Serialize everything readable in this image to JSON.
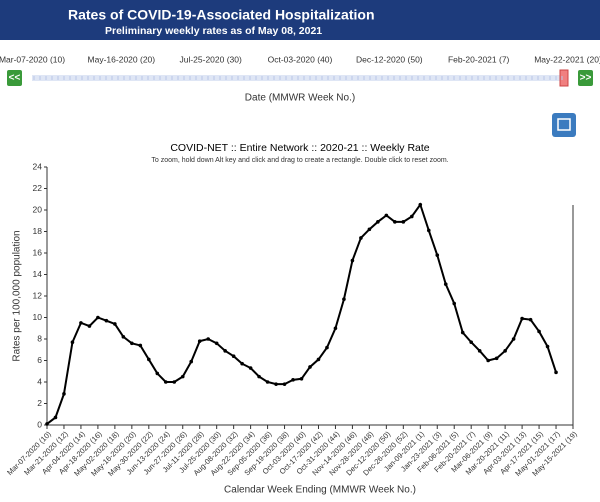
{
  "header": {
    "title": "Rates of COVID-19-Associated Hospitalization",
    "subtitle": "Preliminary weekly rates as of May 08, 2021"
  },
  "slider": {
    "labels": [
      "Mar-07-2020 (10)",
      "May-16-2020 (20)",
      "Jul-25-2020 (30)",
      "Oct-03-2020 (40)",
      "Dec-12-2020 (50)",
      "Feb-20-2021 (7)",
      "May-22-2021 (20)"
    ],
    "prev": "<<",
    "next": ">>",
    "axis_label": "Date (MMWR Week No.)"
  },
  "chart_data": {
    "type": "line",
    "title": "COVID-NET :: Entire Network :: 2020-21 :: Weekly Rate",
    "subtitle": "To zoom, hold down Alt key and click and drag to create a rectangle. Double click to reset zoom.",
    "x_label": "Calendar Week Ending (MMWR Week No.)",
    "y_label": "Rates per 100,000 population",
    "categories": [
      "Mar-07-2020 (10)",
      null,
      "Mar-21-2020 (12)",
      null,
      "Apr-04-2020 (14)",
      null,
      "Apr-18-2020 (16)",
      null,
      "May-02-2020 (18)",
      null,
      "May-16-2020 (20)",
      null,
      "May-30-2020 (22)",
      null,
      "Jun-13-2020 (24)",
      null,
      "Jun-27-2020 (26)",
      null,
      "Jul-11-2020 (28)",
      null,
      "Jul-25-2020 (30)",
      null,
      "Aug-08-2020 (32)",
      null,
      "Aug-22-2020 (34)",
      null,
      "Sep-05-2020 (36)",
      null,
      "Sep-19-2020 (38)",
      null,
      "Oct-03-2020 (40)",
      null,
      "Oct-17-2020 (42)",
      null,
      "Oct-31-2020 (44)",
      null,
      "Nov-14-2020 (46)",
      null,
      "Nov-28-2020 (48)",
      null,
      "Dec-12-2020 (50)",
      null,
      "Dec-26-2020 (52)",
      null,
      "Jan-09-2021 (1)",
      null,
      "Jan-23-2021 (3)",
      null,
      "Feb-06-2021 (5)",
      null,
      "Feb-20-2021 (7)",
      null,
      "Mar-06-2021 (9)",
      null,
      "Mar-20-2021 (11)",
      null,
      "Apr-03-2021 (13)",
      null,
      "Apr-17-2021 (15)",
      null,
      "May-01-2021 (17)",
      null,
      "May-15-2021 (19)"
    ],
    "series": [
      {
        "name": "Weekly Rate",
        "color": "#000000",
        "values": [
          0.1,
          0.7,
          2.9,
          7.7,
          9.5,
          9.2,
          10.0,
          9.7,
          9.4,
          8.2,
          7.6,
          7.4,
          6.1,
          4.8,
          4.0,
          4.0,
          4.5,
          5.9,
          7.8,
          8.0,
          7.6,
          6.9,
          6.4,
          5.7,
          5.3,
          4.5,
          4.0,
          3.8,
          3.8,
          4.2,
          4.3,
          5.4,
          6.1,
          7.2,
          9.0,
          11.7,
          15.3,
          17.4,
          18.2,
          18.9,
          19.5,
          18.9,
          18.9,
          19.4,
          20.5,
          18.1,
          15.8,
          13.1,
          11.3,
          8.6,
          7.7,
          6.9,
          6.0,
          6.2,
          6.9,
          8.0,
          9.9,
          9.8,
          8.7,
          7.3,
          4.9,
          null,
          null
        ]
      }
    ],
    "ylim": [
      0,
      24
    ],
    "yticks": [
      0,
      2,
      4,
      6,
      8,
      10,
      12,
      14,
      16,
      18,
      20,
      22,
      24
    ]
  }
}
